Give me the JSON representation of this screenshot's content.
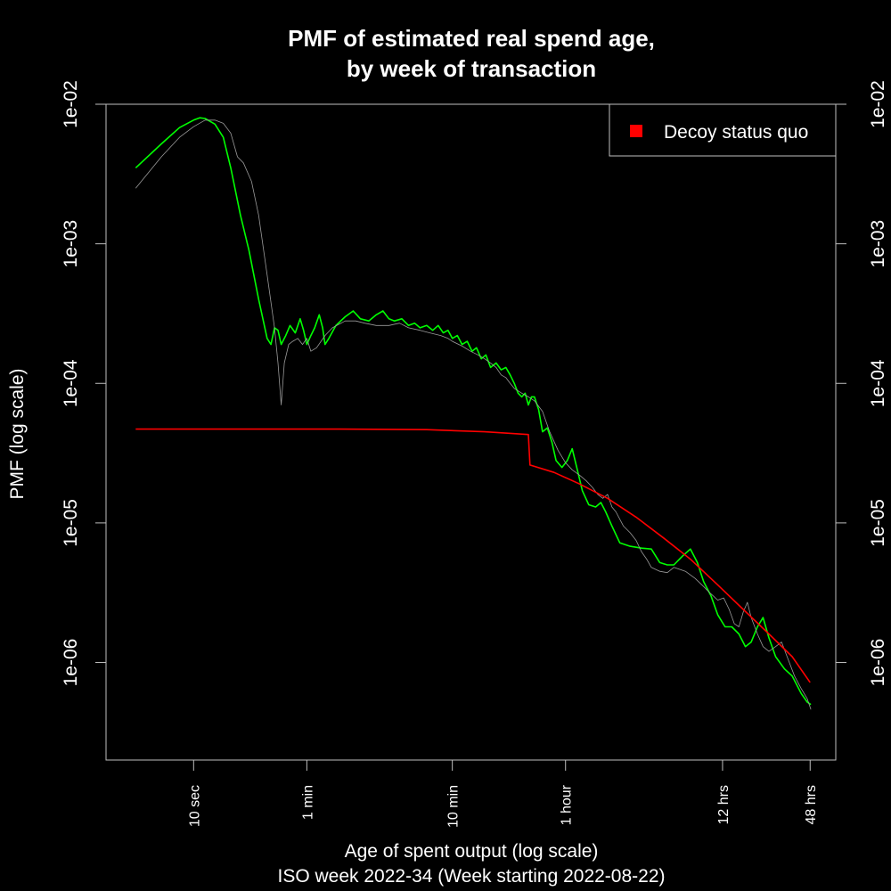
{
  "chart_data": {
    "type": "line",
    "title_lines": [
      "PMF of estimated real spend age,",
      "by week of transaction"
    ],
    "xlabel": "Age of spent output (log scale)",
    "subtitle": "ISO week 2022-34 (Week starting 2022-08-22)",
    "ylabel": "PMF (log scale)",
    "x_scale": "log",
    "y_scale": "log",
    "x_unit": "seconds",
    "xlim": [
      2.5,
      259200
    ],
    "ylim": [
      2e-07,
      0.01
    ],
    "x_ticks": [
      {
        "value": 10,
        "label": "10 sec"
      },
      {
        "value": 60,
        "label": "1 min"
      },
      {
        "value": 600,
        "label": "10 min"
      },
      {
        "value": 3600,
        "label": "1 hour"
      },
      {
        "value": 43200,
        "label": "12 hrs"
      },
      {
        "value": 172800,
        "label": "48 hrs"
      }
    ],
    "y_ticks": [
      {
        "value": 0.01,
        "label": "1e-02"
      },
      {
        "value": 0.001,
        "label": "1e-03"
      },
      {
        "value": 0.0001,
        "label": "1e-04"
      },
      {
        "value": 1e-05,
        "label": "1e-05"
      },
      {
        "value": 1e-06,
        "label": "1e-06"
      }
    ],
    "legend": {
      "position": "top-right",
      "entries": [
        {
          "label": "Decoy status quo",
          "color": "#ff0000"
        }
      ]
    },
    "series": [
      {
        "color": "#00ff00",
        "width": 1.6,
        "points": [
          [
            4,
            0.0035
          ],
          [
            6,
            0.0052
          ],
          [
            8,
            0.0068
          ],
          [
            10,
            0.0077
          ],
          [
            11,
            0.008
          ],
          [
            12,
            0.0079
          ],
          [
            14,
            0.0072
          ],
          [
            16,
            0.0058
          ],
          [
            18,
            0.0035
          ],
          [
            21,
            0.0016
          ],
          [
            24,
            0.0009
          ],
          [
            28,
            0.0004
          ],
          [
            32,
            0.00021
          ],
          [
            34,
            0.00019
          ],
          [
            36,
            0.00025
          ],
          [
            38,
            0.00024
          ],
          [
            40,
            0.00019
          ],
          [
            43,
            0.00022
          ],
          [
            46,
            0.00026
          ],
          [
            50,
            0.00023
          ],
          [
            54,
            0.00029
          ],
          [
            57,
            0.00024
          ],
          [
            60,
            0.00019
          ],
          [
            64,
            0.00022
          ],
          [
            68,
            0.00025
          ],
          [
            73,
            0.00031
          ],
          [
            77,
            0.00025
          ],
          [
            80,
            0.00019
          ],
          [
            85,
            0.00021
          ],
          [
            95,
            0.00026
          ],
          [
            110,
            0.0003
          ],
          [
            125,
            0.00033
          ],
          [
            140,
            0.00029
          ],
          [
            160,
            0.00028
          ],
          [
            180,
            0.00031
          ],
          [
            200,
            0.00033
          ],
          [
            220,
            0.00029
          ],
          [
            240,
            0.00028
          ],
          [
            270,
            0.00029
          ],
          [
            300,
            0.00026
          ],
          [
            330,
            0.00027
          ],
          [
            360,
            0.00025
          ],
          [
            400,
            0.00026
          ],
          [
            440,
            0.00024
          ],
          [
            480,
            0.00026
          ],
          [
            520,
            0.00023
          ],
          [
            560,
            0.00024
          ],
          [
            600,
            0.00021
          ],
          [
            650,
            0.00022
          ],
          [
            700,
            0.00019
          ],
          [
            760,
            0.0002
          ],
          [
            820,
            0.00017
          ],
          [
            880,
            0.00018
          ],
          [
            950,
            0.00015
          ],
          [
            1020,
            0.00016
          ],
          [
            1100,
            0.00013
          ],
          [
            1200,
            0.00014
          ],
          [
            1300,
            0.000125
          ],
          [
            1400,
            0.00013
          ],
          [
            1500,
            0.000115
          ],
          [
            1600,
            0.0001
          ],
          [
            1700,
            8.5e-05
          ],
          [
            1800,
            8e-05
          ],
          [
            1900,
            8.5e-05
          ],
          [
            2000,
            7e-05
          ],
          [
            2100,
            8e-05
          ],
          [
            2200,
            8e-05
          ],
          [
            2350,
            6.5e-05
          ],
          [
            2500,
            4.5e-05
          ],
          [
            2700,
            4.8e-05
          ],
          [
            2900,
            3.8e-05
          ],
          [
            3100,
            2.8e-05
          ],
          [
            3400,
            2.5e-05
          ],
          [
            3700,
            2.8e-05
          ],
          [
            4000,
            3.4e-05
          ],
          [
            4300,
            2.5e-05
          ],
          [
            4700,
            1.7e-05
          ],
          [
            5200,
            1.35e-05
          ],
          [
            5800,
            1.3e-05
          ],
          [
            6300,
            1.4e-05
          ],
          [
            6800,
            1.2e-05
          ],
          [
            7500,
            9.5e-06
          ],
          [
            8500,
            7.2e-06
          ],
          [
            10000,
            6.8e-06
          ],
          [
            12000,
            6.6e-06
          ],
          [
            14000,
            6.5e-06
          ],
          [
            16000,
            5.2e-06
          ],
          [
            18000,
            5e-06
          ],
          [
            20000,
            5e-06
          ],
          [
            23000,
            5.8e-06
          ],
          [
            26000,
            6.5e-06
          ],
          [
            29000,
            5.2e-06
          ],
          [
            32000,
            3.8e-06
          ],
          [
            36000,
            3e-06
          ],
          [
            40000,
            2.2e-06
          ],
          [
            45000,
            1.8e-06
          ],
          [
            50000,
            1.8e-06
          ],
          [
            56000,
            1.6e-06
          ],
          [
            62000,
            1.3e-06
          ],
          [
            68000,
            1.4e-06
          ],
          [
            75000,
            1.8e-06
          ],
          [
            82000,
            2.1e-06
          ],
          [
            90000,
            1.5e-06
          ],
          [
            100000,
            1.1e-06
          ],
          [
            115000,
            9e-07
          ],
          [
            130000,
            8e-07
          ],
          [
            150000,
            6e-07
          ],
          [
            165000,
            5.2e-07
          ],
          [
            175000,
            5e-07
          ]
        ]
      },
      {
        "color": "#9a9a9a",
        "width": 0.8,
        "points": [
          [
            4,
            0.0025
          ],
          [
            6,
            0.0042
          ],
          [
            8,
            0.0058
          ],
          [
            10,
            0.0069
          ],
          [
            12,
            0.0077
          ],
          [
            14,
            0.0077
          ],
          [
            16,
            0.0073
          ],
          [
            18,
            0.0062
          ],
          [
            20,
            0.0042
          ],
          [
            22,
            0.0038
          ],
          [
            25,
            0.0028
          ],
          [
            28,
            0.0016
          ],
          [
            32,
            0.0006
          ],
          [
            36,
            0.00025
          ],
          [
            38,
            0.00014
          ],
          [
            40,
            7e-05
          ],
          [
            42,
            0.00014
          ],
          [
            45,
            0.00019
          ],
          [
            48,
            0.0002
          ],
          [
            52,
            0.00021
          ],
          [
            56,
            0.00019
          ],
          [
            60,
            0.00021
          ],
          [
            64,
            0.00017
          ],
          [
            70,
            0.00018
          ],
          [
            80,
            0.00022
          ],
          [
            90,
            0.00025
          ],
          [
            110,
            0.00028
          ],
          [
            130,
            0.00028
          ],
          [
            150,
            0.00027
          ],
          [
            180,
            0.00026
          ],
          [
            220,
            0.00026
          ],
          [
            260,
            0.00027
          ],
          [
            300,
            0.00025
          ],
          [
            360,
            0.00024
          ],
          [
            420,
            0.00023
          ],
          [
            500,
            0.00022
          ],
          [
            560,
            0.00021
          ],
          [
            600,
            0.0002
          ],
          [
            700,
            0.000185
          ],
          [
            800,
            0.00017
          ],
          [
            900,
            0.00016
          ],
          [
            1000,
            0.00015
          ],
          [
            1100,
            0.00014
          ],
          [
            1200,
            0.00013
          ],
          [
            1300,
            0.000115
          ],
          [
            1400,
            0.00011
          ],
          [
            1500,
            0.0001
          ],
          [
            1600,
            9.2e-05
          ],
          [
            1800,
            8.5e-05
          ],
          [
            2000,
            8e-05
          ],
          [
            2200,
            7.5e-05
          ],
          [
            2500,
            6.3e-05
          ],
          [
            2800,
            4.5e-05
          ],
          [
            3200,
            3.3e-05
          ],
          [
            3600,
            2.7e-05
          ],
          [
            4000,
            2.4e-05
          ],
          [
            4500,
            2.2e-05
          ],
          [
            5000,
            2e-05
          ],
          [
            5500,
            1.8e-05
          ],
          [
            6000,
            1.6e-05
          ],
          [
            6500,
            1.5e-05
          ],
          [
            7000,
            1.6e-05
          ],
          [
            7500,
            1.3e-05
          ],
          [
            8000,
            1.2e-05
          ],
          [
            9000,
            9.5e-06
          ],
          [
            10000,
            8.5e-06
          ],
          [
            11000,
            7.5e-06
          ],
          [
            12000,
            6.2e-06
          ],
          [
            13000,
            5.5e-06
          ],
          [
            14000,
            4.8e-06
          ],
          [
            16000,
            4.5e-06
          ],
          [
            18000,
            4.4e-06
          ],
          [
            20000,
            4.8e-06
          ],
          [
            24000,
            4.5e-06
          ],
          [
            28000,
            4e-06
          ],
          [
            32000,
            3.5e-06
          ],
          [
            36000,
            3.1e-06
          ],
          [
            40000,
            2.8e-06
          ],
          [
            44000,
            2.9e-06
          ],
          [
            48000,
            2.4e-06
          ],
          [
            52000,
            1.9e-06
          ],
          [
            56000,
            1.8e-06
          ],
          [
            60000,
            2.3e-06
          ],
          [
            64000,
            2.7e-06
          ],
          [
            68000,
            2.1e-06
          ],
          [
            75000,
            1.6e-06
          ],
          [
            82000,
            1.3e-06
          ],
          [
            90000,
            1.2e-06
          ],
          [
            100000,
            1.3e-06
          ],
          [
            110000,
            1.4e-06
          ],
          [
            120000,
            1.1e-06
          ],
          [
            135000,
            8e-07
          ],
          [
            150000,
            6.5e-07
          ],
          [
            165000,
            5.5e-07
          ],
          [
            175000,
            4.6e-07
          ]
        ]
      },
      {
        "name": "Decoy status quo",
        "color": "#ff0000",
        "width": 1.6,
        "points": [
          [
            4,
            4.7e-05
          ],
          [
            100,
            4.7e-05
          ],
          [
            400,
            4.66e-05
          ],
          [
            1000,
            4.5e-05
          ],
          [
            2000,
            4.3e-05
          ],
          [
            2050,
            2.6e-05
          ],
          [
            3000,
            2.3e-05
          ],
          [
            4500,
            1.9e-05
          ],
          [
            7000,
            1.5e-05
          ],
          [
            11000,
            1.1e-05
          ],
          [
            17000,
            7.8e-06
          ],
          [
            26000,
            5.5e-06
          ],
          [
            40000,
            3.6e-06
          ],
          [
            60000,
            2.4e-06
          ],
          [
            90000,
            1.6e-06
          ],
          [
            130000,
            1.1e-06
          ],
          [
            172800,
            7.2e-07
          ]
        ]
      }
    ]
  }
}
